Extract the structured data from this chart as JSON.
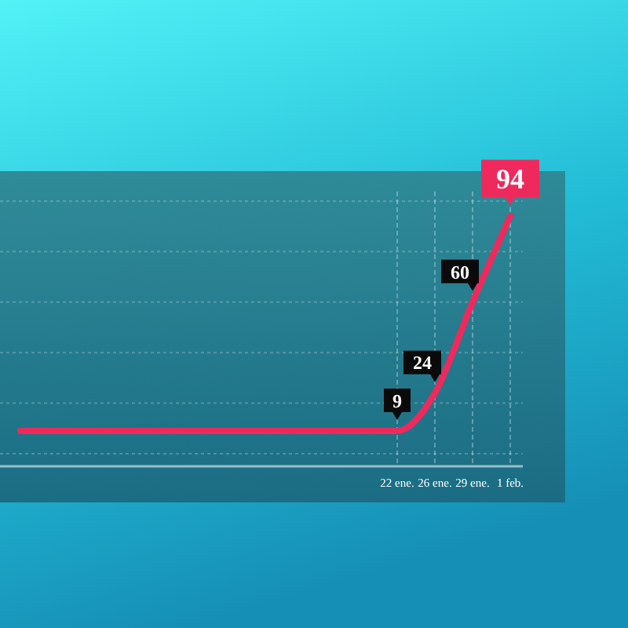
{
  "chart_data": {
    "type": "line",
    "categories": [
      null,
      null,
      null,
      null,
      null,
      null,
      null,
      null,
      null,
      null,
      "22 ene.",
      "26 ene.",
      "29 ene.",
      "1 feb."
    ],
    "series": [
      {
        "color": "#ee2a5c",
        "values": [
          9,
          9,
          9,
          9,
          9,
          9,
          9,
          9,
          9,
          9,
          9,
          24,
          60,
          94
        ],
        "value_labels": [
          null,
          null,
          null,
          null,
          null,
          null,
          null,
          null,
          null,
          null,
          "9",
          "24",
          "60",
          "94"
        ]
      }
    ],
    "ylim": [
      -5,
      110
    ],
    "yticks": [
      {
        "value": 0,
        "label": null
      },
      {
        "value": 20,
        "label": null
      },
      {
        "value": 40,
        "label": null
      },
      {
        "value": 60,
        "label": null
      },
      {
        "value": 80,
        "label": null
      },
      {
        "value": 100,
        "label": null
      }
    ],
    "grid": true,
    "tick_labels": "x"
  }
}
